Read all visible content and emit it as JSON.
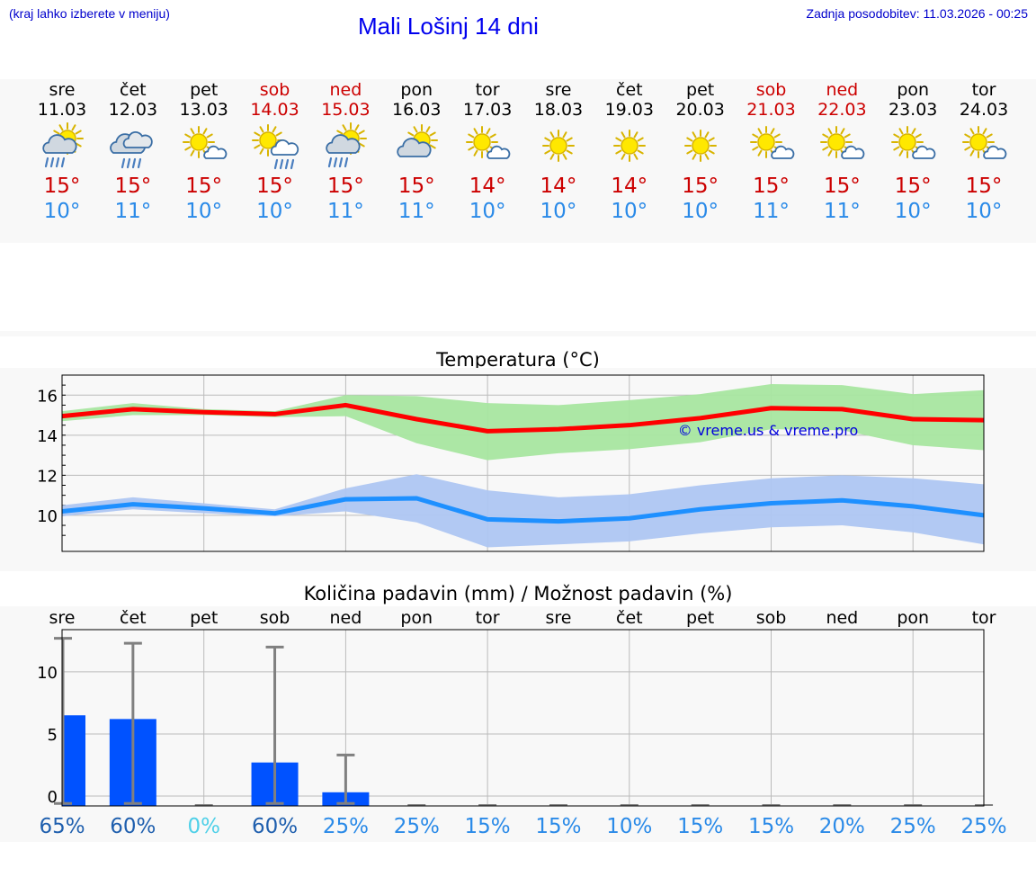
{
  "header": {
    "left_note": "(kraj lahko izberete v meniju)",
    "title": "Mali Lošinj 14 dni",
    "updated": "Zadnja posodobitev: 11.03.2026 - 00:25"
  },
  "colors": {
    "weekend": "#cc0000",
    "tmax": "#cc0000",
    "tmin": "#2a8ae8",
    "max_band": "#a8e6a0",
    "min_band": "#aec6f2",
    "max_line": "#ff0000",
    "min_line": "#1e90ff",
    "bar": "#0052ff",
    "whisker": "#808080"
  },
  "days": [
    {
      "name": "sre",
      "date": "11.03",
      "weekend": false,
      "icon": "partly-cloudy-rain-icon",
      "tmax": "15°",
      "tmin": "10°"
    },
    {
      "name": "čet",
      "date": "12.03",
      "weekend": false,
      "icon": "cloudy-rain-icon",
      "tmax": "15°",
      "tmin": "11°"
    },
    {
      "name": "pet",
      "date": "13.03",
      "weekend": false,
      "icon": "sun-small-cloud-icon",
      "tmax": "15°",
      "tmin": "10°"
    },
    {
      "name": "sob",
      "date": "14.03",
      "weekend": true,
      "icon": "sun-cloud-rain-icon",
      "tmax": "15°",
      "tmin": "10°"
    },
    {
      "name": "ned",
      "date": "15.03",
      "weekend": true,
      "icon": "partly-cloudy-rain-icon",
      "tmax": "15°",
      "tmin": "11°"
    },
    {
      "name": "pon",
      "date": "16.03",
      "weekend": false,
      "icon": "partly-cloudy-icon",
      "tmax": "15°",
      "tmin": "11°"
    },
    {
      "name": "tor",
      "date": "17.03",
      "weekend": false,
      "icon": "sun-small-cloud-icon",
      "tmax": "14°",
      "tmin": "10°"
    },
    {
      "name": "sre",
      "date": "18.03",
      "weekend": false,
      "icon": "sun-icon",
      "tmax": "14°",
      "tmin": "10°"
    },
    {
      "name": "čet",
      "date": "19.03",
      "weekend": false,
      "icon": "sun-icon",
      "tmax": "14°",
      "tmin": "10°"
    },
    {
      "name": "pet",
      "date": "20.03",
      "weekend": false,
      "icon": "sun-icon",
      "tmax": "15°",
      "tmin": "10°"
    },
    {
      "name": "sob",
      "date": "21.03",
      "weekend": true,
      "icon": "sun-small-cloud-icon",
      "tmax": "15°",
      "tmin": "11°"
    },
    {
      "name": "ned",
      "date": "22.03",
      "weekend": true,
      "icon": "sun-small-cloud-icon",
      "tmax": "15°",
      "tmin": "11°"
    },
    {
      "name": "pon",
      "date": "23.03",
      "weekend": false,
      "icon": "sun-small-cloud-icon",
      "tmax": "15°",
      "tmin": "10°"
    },
    {
      "name": "tor",
      "date": "24.03",
      "weekend": false,
      "icon": "sun-small-cloud-icon",
      "tmax": "15°",
      "tmin": "10°"
    }
  ],
  "chart_data": [
    {
      "type": "line",
      "title": "Temperatura (°C)",
      "watermark": "© vreme.us & vreme.pro",
      "ylim": [
        8.2,
        17.0
      ],
      "yticks": [
        10,
        12,
        14,
        16
      ],
      "x": [
        0,
        1,
        2,
        3,
        4,
        5,
        6,
        7,
        8,
        9,
        10,
        11,
        12,
        13
      ],
      "series": [
        {
          "name": "max",
          "values": [
            14.95,
            15.3,
            15.15,
            15.05,
            15.5,
            14.8,
            14.2,
            14.3,
            14.5,
            14.85,
            15.35,
            15.3,
            14.8,
            14.75
          ],
          "band_high": [
            15.2,
            15.6,
            15.3,
            15.2,
            16.0,
            15.95,
            15.6,
            15.5,
            15.75,
            16.05,
            16.55,
            16.5,
            16.05,
            16.25
          ],
          "band_low": [
            14.7,
            15.0,
            15.0,
            14.9,
            14.95,
            13.6,
            12.75,
            13.1,
            13.3,
            13.65,
            14.3,
            14.25,
            13.5,
            13.25
          ]
        },
        {
          "name": "min",
          "values": [
            10.2,
            10.55,
            10.35,
            10.1,
            10.8,
            10.85,
            9.8,
            9.7,
            9.85,
            10.3,
            10.6,
            10.75,
            10.45,
            10.0
          ],
          "band_high": [
            10.5,
            10.9,
            10.6,
            10.3,
            11.35,
            12.05,
            11.25,
            10.9,
            11.05,
            11.5,
            11.85,
            12.0,
            11.85,
            11.55
          ],
          "band_low": [
            9.95,
            10.3,
            10.1,
            9.95,
            10.2,
            9.65,
            8.4,
            8.55,
            8.7,
            9.1,
            9.4,
            9.5,
            9.15,
            8.55
          ]
        }
      ]
    },
    {
      "type": "bar",
      "title": "Količina padavin (mm) / Možnost padavin (%)",
      "categories": [
        "sre",
        "čet",
        "pet",
        "sob",
        "ned",
        "pon",
        "tor",
        "sre",
        "čet",
        "pet",
        "sob",
        "ned",
        "pon",
        "tor"
      ],
      "ylim": [
        -0.8,
        13.4
      ],
      "yticks": [
        0,
        5,
        10
      ],
      "values": [
        6.5,
        6.2,
        0,
        2.7,
        0.3,
        0,
        0,
        0,
        0,
        0,
        0,
        0,
        0,
        0
      ],
      "whisker_high": [
        12.7,
        12.3,
        0,
        12.0,
        3.3,
        0,
        0,
        0,
        0,
        0,
        0,
        0,
        0,
        0
      ],
      "whisker_low": [
        -0.6,
        -0.6,
        0,
        -0.6,
        -0.6,
        0,
        0,
        0,
        0,
        0,
        0,
        0,
        0,
        0
      ],
      "chance": [
        "65%",
        "60%",
        "0%",
        "60%",
        "25%",
        "25%",
        "15%",
        "15%",
        "10%",
        "15%",
        "15%",
        "20%",
        "25%",
        "25%"
      ],
      "chance_colors": [
        "#1f5fae",
        "#1f5fae",
        "#4fd0e8",
        "#1f5fae",
        "#2a8ae8",
        "#2a8ae8",
        "#2a8ae8",
        "#2a8ae8",
        "#2a8ae8",
        "#2a8ae8",
        "#2a8ae8",
        "#2a8ae8",
        "#2a8ae8",
        "#2a8ae8"
      ]
    }
  ]
}
